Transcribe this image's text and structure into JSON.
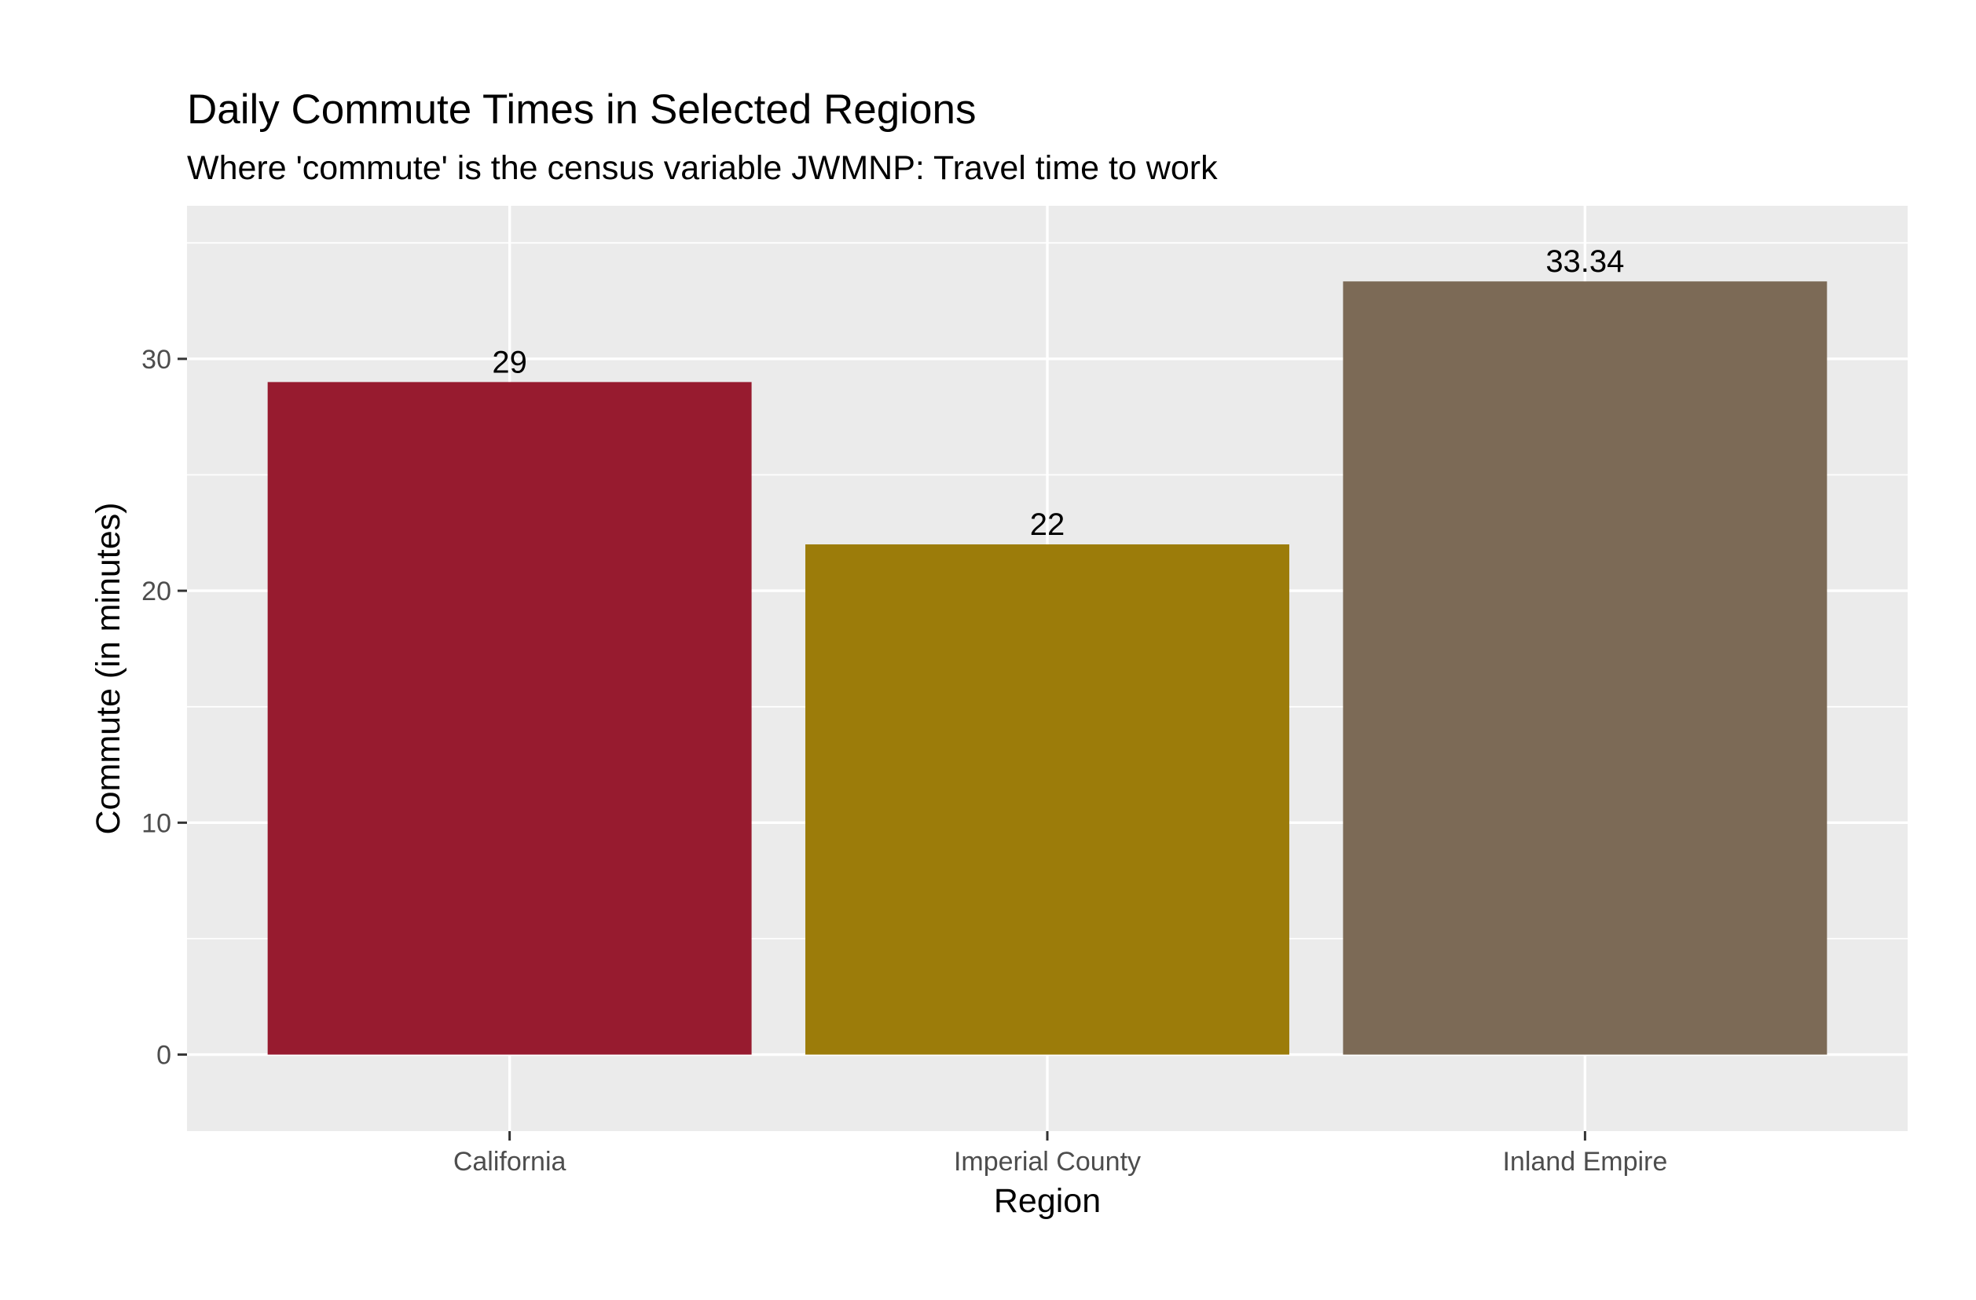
{
  "chart_data": {
    "type": "bar",
    "title": "Daily Commute Times in Selected Regions",
    "subtitle": "Where 'commute' is the census variable JWMNP: Travel time to work",
    "xlabel": "Region",
    "ylabel": "Commute (in minutes)",
    "categories": [
      "California",
      "Imperial County",
      "Inland Empire"
    ],
    "values": [
      29,
      22,
      33.34
    ],
    "data_labels": [
      "29",
      "22",
      "33.34"
    ],
    "colors": [
      "#971B2F",
      "#9C7C0A",
      "#7C6A56"
    ],
    "ylim": [
      -3.3,
      36.6
    ],
    "yticks": [
      0,
      10,
      20,
      30
    ],
    "ytick_labels": [
      "0",
      "10",
      "20",
      "30"
    ],
    "grid": true,
    "legend": "none",
    "panel_background": "#EBEBEB",
    "grid_color": "#FFFFFF"
  }
}
